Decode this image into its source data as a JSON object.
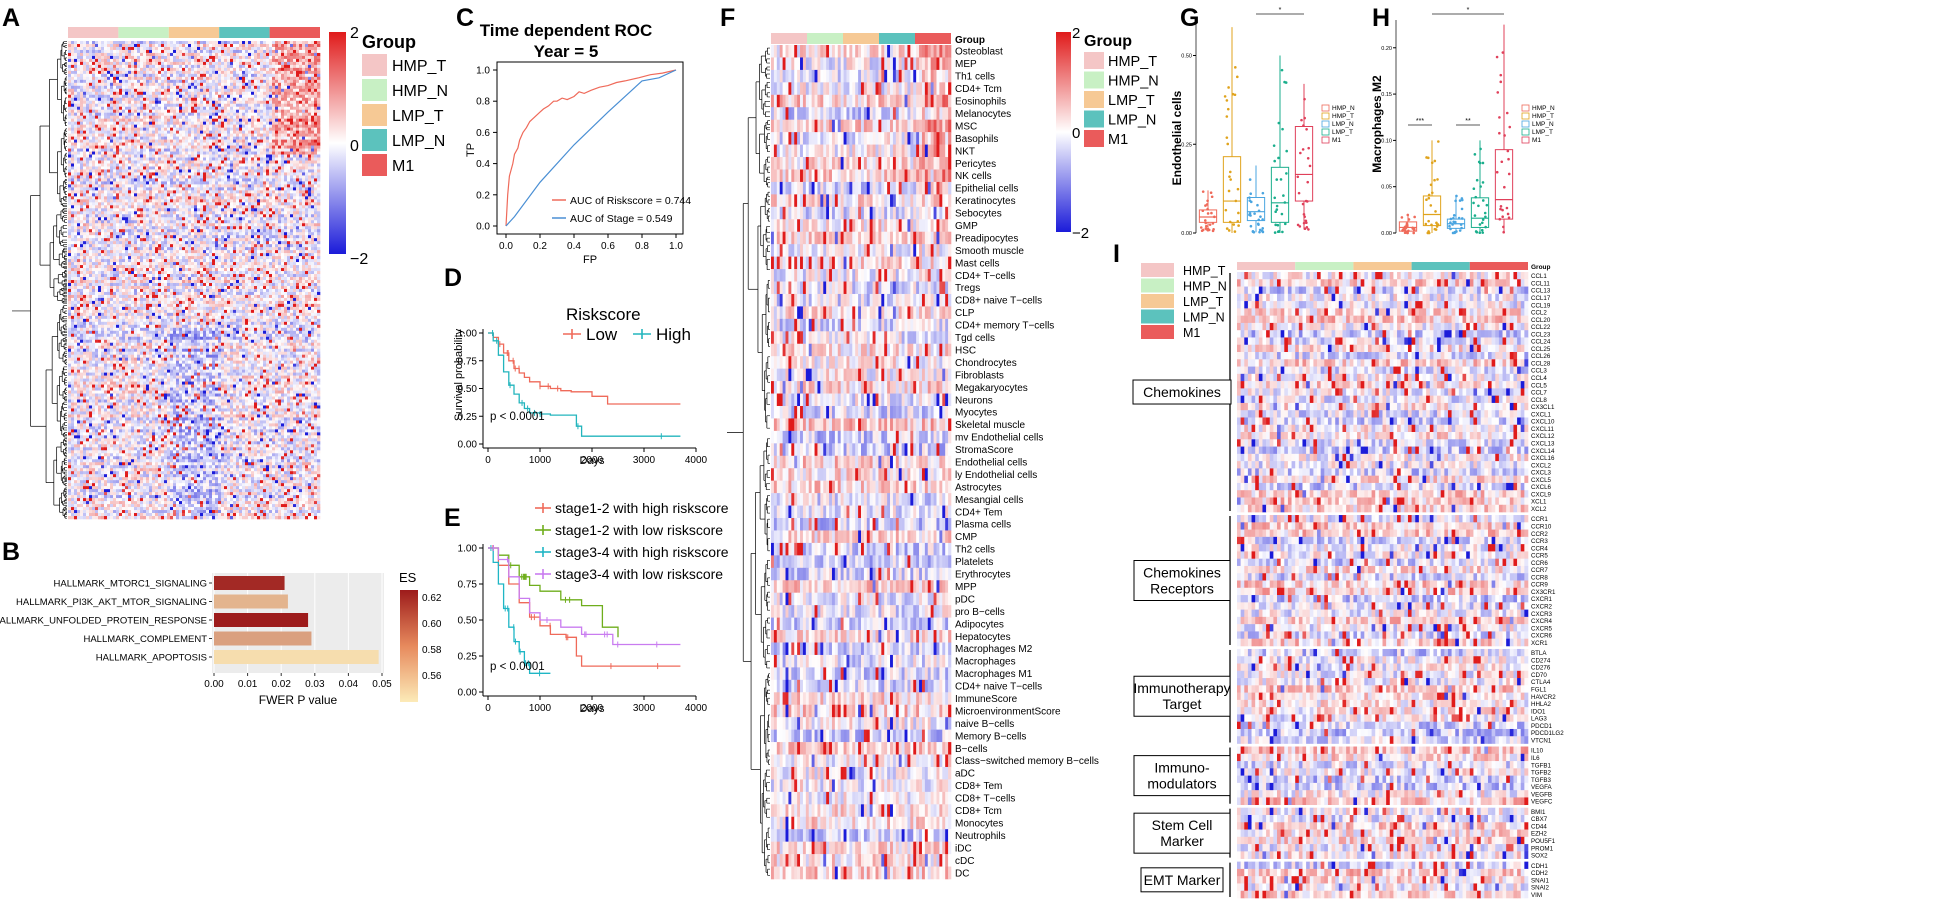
{
  "colors": {
    "HMP_T": "#f4c6c6",
    "HMP_N": "#c8f0c4",
    "LMP_T": "#f6c995",
    "LMP_N": "#5cc2bd",
    "M1": "#ea5b5b",
    "heat_low": "#1b1bd9",
    "heat_mid": "#ffffff",
    "heat_high": "#e01b1b",
    "low_curve": "#ef6a5a",
    "high_curve": "#23b5bd",
    "s12h": "#ef6a5a",
    "s12l": "#6fae1c",
    "s34h": "#1fb6c5",
    "s34l": "#c97cf0",
    "stage_roc": "#4a8fd4"
  },
  "panel_letters": {
    "A": "A",
    "B": "B",
    "C": "C",
    "D": "D",
    "E": "E",
    "F": "F",
    "G": "G",
    "H": "H",
    "I": "I"
  },
  "legend": {
    "title": "Group",
    "groups": [
      "HMP_T",
      "HMP_N",
      "LMP_T",
      "LMP_N",
      "M1"
    ],
    "gradient_ticks": [
      "2",
      "0",
      "−2"
    ]
  },
  "chart_data": [
    {
      "id": "A",
      "type": "heatmap",
      "title": "",
      "column_groups": [
        "HMP_T",
        "HMP_N",
        "LMP_T",
        "LMP_N",
        "M1"
      ],
      "value_range": [
        -2,
        2
      ]
    },
    {
      "id": "B",
      "type": "bar",
      "categories": [
        "HALLMARK_MTORC1_SIGNALING",
        "HALLMARK_PI3K_AKT_MTOR_SIGNALING",
        "HALLMARK_UNFOLDED_PROTEIN_RESPONSE",
        "HALLMARK_COMPLEMENT",
        "HALLMARK_APOPTOSIS"
      ],
      "values": [
        0.021,
        0.022,
        0.028,
        0.029,
        0.049
      ],
      "es": [
        0.625,
        0.575,
        0.63,
        0.582,
        0.56
      ],
      "xlabel": "FWER P value",
      "xlim": [
        0,
        0.05
      ],
      "xticks": [
        "0.00",
        "0.01",
        "0.02",
        "0.03",
        "0.04",
        "0.05"
      ],
      "legend_title": "ES",
      "legend_ticks": [
        "0.62",
        "0.60",
        "0.58",
        "0.56"
      ]
    },
    {
      "id": "C",
      "type": "line",
      "title": "Time dependent ROC",
      "subtitle": "Year = 5",
      "xlabel": "FP",
      "ylabel": "TP",
      "xlim": [
        0,
        1
      ],
      "ylim": [
        0,
        1
      ],
      "ticks": [
        "0.0",
        "0.2",
        "0.4",
        "0.6",
        "0.8",
        "1.0"
      ],
      "series": [
        {
          "name": "AUC of Riskscore = 0.744",
          "x": [
            0,
            0.01,
            0.02,
            0.04,
            0.05,
            0.07,
            0.08,
            0.1,
            0.12,
            0.14,
            0.17,
            0.2,
            0.22,
            0.25,
            0.28,
            0.3,
            0.33,
            0.36,
            0.4,
            0.43,
            0.46,
            0.5,
            0.55,
            0.6,
            0.65,
            0.7,
            0.78,
            0.85,
            0.92,
            1.0
          ],
          "y": [
            0,
            0.2,
            0.32,
            0.4,
            0.46,
            0.5,
            0.55,
            0.6,
            0.63,
            0.67,
            0.7,
            0.73,
            0.75,
            0.77,
            0.8,
            0.8,
            0.82,
            0.81,
            0.83,
            0.86,
            0.85,
            0.87,
            0.89,
            0.9,
            0.92,
            0.93,
            0.95,
            0.97,
            0.98,
            1.0
          ]
        },
        {
          "name": "AUC of Stage = 0.549",
          "x": [
            0,
            0.05,
            0.2,
            0.4,
            0.6,
            0.8,
            0.9,
            1.0
          ],
          "y": [
            0,
            0.06,
            0.28,
            0.52,
            0.73,
            0.93,
            0.95,
            1.0
          ]
        }
      ]
    },
    {
      "id": "D",
      "type": "line",
      "title": "",
      "legend_title": "Riskscore",
      "xlabel": "Days",
      "ylabel": "Survival probability",
      "xlim": [
        0,
        4000
      ],
      "ylim": [
        0,
        1
      ],
      "xticks": [
        "0",
        "1000",
        "2000",
        "3000",
        "4000"
      ],
      "yticks": [
        "0.00",
        "0.25",
        "0.50",
        "0.75",
        "1.00"
      ],
      "annotation": "p < 0.0001",
      "series": [
        {
          "name": "Low",
          "x": [
            0,
            100,
            200,
            300,
            400,
            500,
            600,
            700,
            800,
            1000,
            1200,
            1400,
            1600,
            1800,
            2000,
            2200,
            2300,
            3700
          ],
          "y": [
            1,
            0.96,
            0.9,
            0.82,
            0.75,
            0.68,
            0.64,
            0.6,
            0.56,
            0.52,
            0.5,
            0.48,
            0.47,
            0.47,
            0.43,
            0.43,
            0.36,
            0.36
          ]
        },
        {
          "name": "High",
          "x": [
            0,
            100,
            200,
            300,
            400,
            500,
            600,
            700,
            800,
            1000,
            1200,
            1500,
            1700,
            1800,
            3700
          ],
          "y": [
            1,
            0.93,
            0.8,
            0.65,
            0.53,
            0.45,
            0.37,
            0.32,
            0.28,
            0.27,
            0.26,
            0.26,
            0.16,
            0.07,
            0.07
          ]
        }
      ]
    },
    {
      "id": "E",
      "type": "line",
      "title": "",
      "xlabel": "Days",
      "ylabel": "",
      "xlim": [
        0,
        4000
      ],
      "ylim": [
        0,
        1
      ],
      "xticks": [
        "0",
        "1000",
        "2000",
        "3000",
        "4000"
      ],
      "yticks": [
        "0.00",
        "0.25",
        "0.50",
        "0.75",
        "1.00"
      ],
      "annotation": "p < 0.0001",
      "series": [
        {
          "name": "stage1-2 with high riskscore",
          "x": [
            0,
            200,
            400,
            600,
            800,
            1000,
            1200,
            1500,
            1700,
            1800,
            3700
          ],
          "y": [
            1,
            0.88,
            0.75,
            0.62,
            0.52,
            0.46,
            0.4,
            0.38,
            0.25,
            0.18,
            0.18
          ]
        },
        {
          "name": "stage1-2 with low riskscore",
          "x": [
            0,
            200,
            400,
            600,
            800,
            1000,
            1400,
            1800,
            2200,
            2500
          ],
          "y": [
            1,
            0.95,
            0.88,
            0.8,
            0.74,
            0.7,
            0.64,
            0.6,
            0.45,
            0.38
          ]
        },
        {
          "name": "stage3-4 with high riskscore",
          "x": [
            0,
            100,
            200,
            300,
            400,
            500,
            600,
            700,
            800,
            1000,
            1200
          ],
          "y": [
            1,
            0.9,
            0.75,
            0.58,
            0.45,
            0.35,
            0.28,
            0.2,
            0.13,
            0.13,
            0.13
          ]
        },
        {
          "name": "stage3-4 with low riskscore",
          "x": [
            0,
            200,
            400,
            600,
            800,
            1000,
            1400,
            1800,
            2200,
            2400,
            3700
          ],
          "y": [
            1,
            0.92,
            0.8,
            0.65,
            0.55,
            0.5,
            0.45,
            0.4,
            0.4,
            0.33,
            0.33
          ]
        }
      ]
    },
    {
      "id": "F",
      "type": "heatmap",
      "title": "",
      "legend_title": "Group",
      "column_groups": [
        "HMP_T",
        "HMP_N",
        "LMP_T",
        "LMP_N",
        "M1"
      ],
      "value_range": [
        -2,
        2
      ],
      "row_header": "Group",
      "rows": [
        "Osteoblast",
        "MEP",
        "Th1 cells",
        "CD4+ Tcm",
        "Eosinophils",
        "Melanocytes",
        "MSC",
        "Basophils",
        "NKT",
        "Pericytes",
        "NK cells",
        "Epithelial cells",
        "Keratinocytes",
        "Sebocytes",
        "GMP",
        "Preadipocytes",
        "Smooth muscle",
        "Mast cells",
        "CD4+ T−cells",
        "Tregs",
        "CD8+ naive T−cells",
        "CLP",
        "CD4+ memory T−cells",
        "Tgd cells",
        "HSC",
        "Chondrocytes",
        "Fibroblasts",
        "Megakaryocytes",
        "Neurons",
        "Myocytes",
        "Skeletal muscle",
        "mv Endothelial cells",
        "StromaScore",
        "Endothelial cells",
        "ly Endothelial cells",
        "Astrocytes",
        "Mesangial cells",
        "CD4+ Tem",
        "Plasma cells",
        "CMP",
        "Th2 cells",
        "Platelets",
        "Erythrocytes",
        "MPP",
        "pDC",
        "pro B−cells",
        "Adipocytes",
        "Hepatocytes",
        "Macrophages M2",
        "Macrophages",
        "Macrophages M1",
        "CD4+ naive T−cells",
        "ImmuneScore",
        "MicroenvironmentScore",
        "naive B−cells",
        "Memory B−cells",
        "B−cells",
        "Class−switched memory B−cells",
        "aDC",
        "CD8+ Tem",
        "CD8+ T−cells",
        "CD8+ Tcm",
        "Monocytes",
        "Neutrophils",
        "iDC",
        "cDC",
        "DC"
      ]
    },
    {
      "id": "G",
      "type": "scatter",
      "ylabel": "Endothelial cells",
      "categories": [
        "HMP_N",
        "HMP_T",
        "LMP_N",
        "LMP_T",
        "M1"
      ],
      "medians": [
        0.045,
        0.09,
        0.06,
        0.085,
        0.165
      ],
      "q1": [
        0.03,
        0.03,
        0.035,
        0.03,
        0.09
      ],
      "q3": [
        0.065,
        0.215,
        0.1,
        0.185,
        0.3
      ],
      "whisker_low": [
        0.005,
        0.0,
        0.002,
        0.0,
        0.01
      ],
      "whisker_high": [
        0.12,
        0.58,
        0.19,
        0.5,
        0.42
      ],
      "ylim": [
        0,
        0.6
      ],
      "yticks": [
        "0.00",
        "0.25",
        "0.50"
      ],
      "significance": [
        "*"
      ],
      "legend_items": [
        "HMP_N",
        "HMP_T",
        "LMP_N",
        "LMP_T",
        "M1"
      ]
    },
    {
      "id": "H",
      "type": "scatter",
      "ylabel": "Macrophages M2",
      "categories": [
        "HMP_N",
        "HMP_T",
        "LMP_N",
        "LMP_T",
        "M1"
      ],
      "medians": [
        0.006,
        0.02,
        0.01,
        0.016,
        0.036
      ],
      "q1": [
        0.002,
        0.008,
        0.005,
        0.006,
        0.015
      ],
      "q3": [
        0.012,
        0.04,
        0.015,
        0.038,
        0.09
      ],
      "whisker_low": [
        0.0,
        0.0,
        0.0,
        0.0,
        0.0
      ],
      "whisker_high": [
        0.02,
        0.1,
        0.04,
        0.1,
        0.225
      ],
      "ylim": [
        0,
        0.23
      ],
      "yticks": [
        "0.00",
        "0.05",
        "0.10",
        "0.15",
        "0.20"
      ],
      "significance": [
        "***",
        "**",
        "*"
      ],
      "legend_items": [
        "HMP_N",
        "HMP_T",
        "LMP_N",
        "LMP_T",
        "M1"
      ]
    },
    {
      "id": "I",
      "type": "heatmap",
      "title": "",
      "column_groups": [
        "HMP_T",
        "HMP_N",
        "LMP_T",
        "LMP_N",
        "M1"
      ],
      "row_header": "Group",
      "value_range": [
        -2,
        2
      ],
      "categories": [
        {
          "label": "Chemokines",
          "genes": [
            "CCL1",
            "CCL11",
            "CCL13",
            "CCL17",
            "CCL19",
            "CCL2",
            "CCL20",
            "CCL22",
            "CCL23",
            "CCL24",
            "CCL25",
            "CCL26",
            "CCL28",
            "CCL3",
            "CCL4",
            "CCL5",
            "CCL7",
            "CCL8",
            "CX3CL1",
            "CXCL1",
            "CXCL10",
            "CXCL11",
            "CXCL12",
            "CXCL13",
            "CXCL14",
            "CXCL16",
            "CXCL2",
            "CXCL3",
            "CXCL5",
            "CXCL6",
            "CXCL9",
            "XCL1",
            "XCL2"
          ]
        },
        {
          "label": "Chemokines Receptors",
          "genes": [
            "CCR1",
            "CCR10",
            "CCR2",
            "CCR3",
            "CCR4",
            "CCR5",
            "CCR6",
            "CCR7",
            "CCR8",
            "CCR9",
            "CX3CR1",
            "CXCR1",
            "CXCR2",
            "CXCR3",
            "CXCR4",
            "CXCR5",
            "CXCR6",
            "XCR1"
          ]
        },
        {
          "label": "Immunotherapy Target",
          "genes": [
            "BTLA",
            "CD274",
            "CD276",
            "CD70",
            "CTLA4",
            "FGL1",
            "HAVCR2",
            "HHLA2",
            "IDO1",
            "LAG3",
            "PDCD1",
            "PDCD1LG2",
            "VTCN1"
          ]
        },
        {
          "label": "Immuno-modulators",
          "genes": [
            "IL10",
            "IL6",
            "TGFB1",
            "TGFB2",
            "TGFB3",
            "VEGFA",
            "VEGFB",
            "VEGFC"
          ]
        },
        {
          "label": "Stem Cell Marker",
          "genes": [
            "BMI1",
            "CBX7",
            "CD44",
            "EZH2",
            "POU5F1",
            "PROM1",
            "SOX2"
          ]
        },
        {
          "label": "EMT Marker",
          "genes": [
            "CDH1",
            "CDH2",
            "SNAI1",
            "SNAI2",
            "VIM"
          ]
        }
      ]
    }
  ]
}
